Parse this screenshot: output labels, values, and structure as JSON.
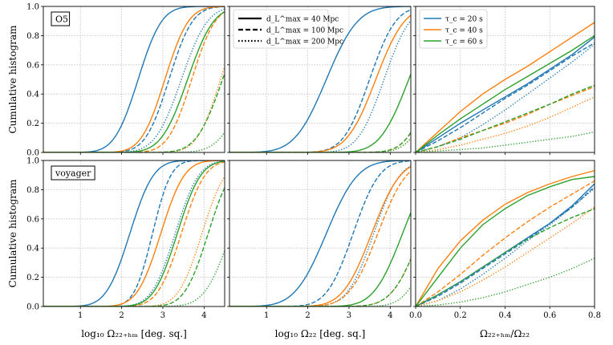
{
  "figure": {
    "row_labels": [
      "O5",
      "voyager"
    ],
    "y_axis_label": "Cumulative histogram",
    "x_axis_labels": [
      "log₁₀ Ω₂₂₊ₕₘ [deg. sq.]",
      "log₁₀ Ω₂₂ [deg. sq.]",
      "Ω₂₂₊ₕₘ/Ω₂₂"
    ],
    "legend_linestyle": [
      "d_L^max = 40 Mpc",
      "d_L^max = 100 Mpc",
      "d_L^max = 200 Mpc"
    ],
    "legend_color": [
      "τ_c = 20 s",
      "τ_c = 40 s",
      "τ_c = 60 s"
    ],
    "colors": {
      "tau20": "#1f77b4",
      "tau40": "#ff7f0e",
      "tau60": "#2ca02c"
    }
  },
  "chart_data": [
    {
      "type": "line",
      "panel": "O5 / log10 Omega22+HM",
      "xlim": [
        0.1,
        4.5
      ],
      "ylim": [
        0,
        1
      ],
      "xticks": [
        1,
        2,
        3,
        4
      ],
      "yticks": [
        0.0,
        0.2,
        0.4,
        0.6,
        0.8,
        1.0
      ],
      "grid": true,
      "series": [
        {
          "name": "tau_c = 20 s, d_L^max = 40 Mpc",
          "color": "#1f77b4",
          "style": "solid",
          "mu": 2.4,
          "sigma": 0.45
        },
        {
          "name": "tau_c = 20 s, d_L^max = 100 Mpc",
          "color": "#1f77b4",
          "style": "dashed",
          "mu": 3.15,
          "sigma": 0.45
        },
        {
          "name": "tau_c = 20 s, d_L^max = 200 Mpc",
          "color": "#1f77b4",
          "style": "dotted",
          "mu": 3.45,
          "sigma": 0.5
        },
        {
          "name": "tau_c = 40 s, d_L^max = 40 Mpc",
          "color": "#ff7f0e",
          "style": "solid",
          "mu": 3.05,
          "sigma": 0.45
        },
        {
          "name": "tau_c = 40 s, d_L^max = 100 Mpc",
          "color": "#ff7f0e",
          "style": "dashed",
          "mu": 3.7,
          "sigma": 0.45
        },
        {
          "name": "tau_c = 40 s, d_L^max = 200 Mpc",
          "color": "#ff7f0e",
          "style": "dotted",
          "mu": 4.4,
          "sigma": 0.45
        },
        {
          "name": "tau_c = 60 s, d_L^max = 40 Mpc",
          "color": "#2ca02c",
          "style": "solid",
          "mu": 3.6,
          "sigma": 0.5
        },
        {
          "name": "tau_c = 60 s, d_L^max = 100 Mpc",
          "color": "#2ca02c",
          "style": "dashed",
          "mu": 4.45,
          "sigma": 0.5
        },
        {
          "name": "tau_c = 60 s, d_L^max = 200 Mpc",
          "color": "#2ca02c",
          "style": "dotted",
          "mu": 5.1,
          "sigma": 0.55
        }
      ]
    },
    {
      "type": "line",
      "panel": "O5 / log10 Omega22",
      "xlim": [
        0.1,
        4.5
      ],
      "ylim": [
        0,
        1
      ],
      "xticks": [
        1,
        2,
        3,
        4
      ],
      "yticks": [
        0.0,
        0.2,
        0.4,
        0.6,
        0.8,
        1.0
      ],
      "grid": true,
      "series": [
        {
          "name": "tau_c = 20 s, d_L^max = 40 Mpc",
          "color": "#1f77b4",
          "style": "solid",
          "mu": 2.45,
          "sigma": 0.6
        },
        {
          "name": "tau_c = 20 s, d_L^max = 100 Mpc",
          "color": "#1f77b4",
          "style": "dashed",
          "mu": 3.5,
          "sigma": 0.5
        },
        {
          "name": "tau_c = 20 s, d_L^max = 200 Mpc",
          "color": "#1f77b4",
          "style": "dotted",
          "mu": 3.85,
          "sigma": 0.5
        },
        {
          "name": "tau_c = 40 s, d_L^max = 40 Mpc",
          "color": "#ff7f0e",
          "style": "solid",
          "mu": 3.65,
          "sigma": 0.55
        },
        {
          "name": "tau_c = 40 s, d_L^max = 100 Mpc",
          "color": "#ff7f0e",
          "style": "dashed",
          "mu": 5.05,
          "sigma": 0.5
        },
        {
          "name": "tau_c = 40 s, d_L^max = 200 Mpc",
          "color": "#ff7f0e",
          "style": "dotted",
          "mu": 5.15,
          "sigma": 0.5
        },
        {
          "name": "tau_c = 60 s, d_L^max = 40 Mpc",
          "color": "#2ca02c",
          "style": "solid",
          "mu": 4.45,
          "sigma": 0.55
        },
        {
          "name": "tau_c = 60 s, d_L^max = 100 Mpc",
          "color": "#2ca02c",
          "style": "dashed",
          "mu": 5.05,
          "sigma": 0.5
        },
        {
          "name": "tau_c = 60 s, d_L^max = 200 Mpc",
          "color": "#2ca02c",
          "style": "dotted",
          "mu": 5.15,
          "sigma": 0.5
        }
      ]
    },
    {
      "type": "line",
      "panel": "O5 / ratio",
      "xlim": [
        0,
        0.8
      ],
      "ylim": [
        0,
        1
      ],
      "xticks": [
        0.0,
        0.2,
        0.4,
        0.6,
        0.8
      ],
      "yticks": [
        0.0,
        0.2,
        0.4,
        0.6,
        0.8,
        1.0
      ],
      "grid": true,
      "series": [
        {
          "name": "tau_c = 20 s, d_L^max = 40 Mpc",
          "color": "#1f77b4",
          "style": "solid",
          "x": [
            0,
            0.1,
            0.2,
            0.3,
            0.4,
            0.5,
            0.6,
            0.7,
            0.8
          ],
          "y": [
            0,
            0.1,
            0.2,
            0.29,
            0.38,
            0.47,
            0.57,
            0.67,
            0.79
          ]
        },
        {
          "name": "tau_c = 20 s, d_L^max = 100 Mpc",
          "color": "#1f77b4",
          "style": "dashed",
          "x": [
            0,
            0.1,
            0.2,
            0.3,
            0.4,
            0.5,
            0.6,
            0.7,
            0.8
          ],
          "y": [
            0,
            0.08,
            0.17,
            0.27,
            0.37,
            0.46,
            0.56,
            0.66,
            0.75
          ]
        },
        {
          "name": "tau_c = 20 s, d_L^max = 200 Mpc",
          "color": "#1f77b4",
          "style": "dotted",
          "x": [
            0,
            0.1,
            0.2,
            0.3,
            0.4,
            0.5,
            0.6,
            0.7,
            0.8
          ],
          "y": [
            0,
            0.04,
            0.1,
            0.19,
            0.29,
            0.4,
            0.51,
            0.62,
            0.74
          ]
        },
        {
          "name": "tau_c = 40 s, d_L^max = 40 Mpc",
          "color": "#ff7f0e",
          "style": "solid",
          "x": [
            0,
            0.1,
            0.2,
            0.3,
            0.4,
            0.5,
            0.6,
            0.7,
            0.8
          ],
          "y": [
            0,
            0.14,
            0.28,
            0.4,
            0.5,
            0.59,
            0.69,
            0.79,
            0.89
          ]
        },
        {
          "name": "tau_c = 40 s, d_L^max = 100 Mpc",
          "color": "#ff7f0e",
          "style": "dashed",
          "x": [
            0,
            0.1,
            0.2,
            0.3,
            0.4,
            0.5,
            0.6,
            0.7,
            0.8
          ],
          "y": [
            0,
            0.04,
            0.1,
            0.15,
            0.2,
            0.26,
            0.33,
            0.39,
            0.45
          ]
        },
        {
          "name": "tau_c = 40 s, d_L^max = 200 Mpc",
          "color": "#ff7f0e",
          "style": "dotted",
          "x": [
            0,
            0.1,
            0.2,
            0.3,
            0.4,
            0.5,
            0.6,
            0.7,
            0.8
          ],
          "y": [
            0,
            0.02,
            0.05,
            0.09,
            0.13,
            0.18,
            0.24,
            0.31,
            0.38
          ]
        },
        {
          "name": "tau_c = 60 s, d_L^max = 40 Mpc",
          "color": "#2ca02c",
          "style": "solid",
          "x": [
            0,
            0.1,
            0.2,
            0.3,
            0.4,
            0.5,
            0.6,
            0.7,
            0.8
          ],
          "y": [
            0,
            0.12,
            0.23,
            0.33,
            0.43,
            0.52,
            0.61,
            0.7,
            0.8
          ]
        },
        {
          "name": "tau_c = 60 s, d_L^max = 100 Mpc",
          "color": "#2ca02c",
          "style": "dashed",
          "x": [
            0,
            0.1,
            0.2,
            0.3,
            0.4,
            0.5,
            0.6,
            0.7,
            0.8
          ],
          "y": [
            0,
            0.04,
            0.09,
            0.15,
            0.21,
            0.27,
            0.33,
            0.4,
            0.46
          ]
        },
        {
          "name": "tau_c = 60 s, d_L^max = 200 Mpc",
          "color": "#2ca02c",
          "style": "dotted",
          "x": [
            0,
            0.1,
            0.2,
            0.3,
            0.4,
            0.5,
            0.6,
            0.7,
            0.8
          ],
          "y": [
            0,
            0.01,
            0.02,
            0.03,
            0.05,
            0.07,
            0.09,
            0.11,
            0.14
          ]
        }
      ]
    },
    {
      "type": "line",
      "panel": "voyager / log10 Omega22+HM",
      "xlim": [
        0.1,
        4.5
      ],
      "ylim": [
        0,
        1
      ],
      "xticks": [
        1,
        2,
        3,
        4
      ],
      "yticks": [
        0.0,
        0.2,
        0.4,
        0.6,
        0.8,
        1.0
      ],
      "grid": true,
      "series": [
        {
          "name": "tau_c = 20 s, d_L^max = 40 Mpc",
          "color": "#1f77b4",
          "style": "solid",
          "mu": 2.2,
          "sigma": 0.45
        },
        {
          "name": "tau_c = 20 s, d_L^max = 100 Mpc",
          "color": "#1f77b4",
          "style": "dashed",
          "mu": 2.75,
          "sigma": 0.35
        },
        {
          "name": "tau_c = 20 s, d_L^max = 200 Mpc",
          "color": "#1f77b4",
          "style": "dotted",
          "mu": 3.3,
          "sigma": 0.45
        },
        {
          "name": "tau_c = 40 s, d_L^max = 40 Mpc",
          "color": "#ff7f0e",
          "style": "solid",
          "mu": 2.95,
          "sigma": 0.45
        },
        {
          "name": "tau_c = 40 s, d_L^max = 100 Mpc",
          "color": "#ff7f0e",
          "style": "dashed",
          "mu": 3.45,
          "sigma": 0.45
        },
        {
          "name": "tau_c = 40 s, d_L^max = 200 Mpc",
          "color": "#ff7f0e",
          "style": "dotted",
          "mu": 3.95,
          "sigma": 0.45
        },
        {
          "name": "tau_c = 60 s, d_L^max = 40 Mpc",
          "color": "#2ca02c",
          "style": "solid",
          "mu": 3.35,
          "sigma": 0.45
        },
        {
          "name": "tau_c = 60 s, d_L^max = 100 Mpc",
          "color": "#2ca02c",
          "style": "dashed",
          "mu": 4.1,
          "sigma": 0.45
        },
        {
          "name": "tau_c = 60 s, d_L^max = 200 Mpc",
          "color": "#2ca02c",
          "style": "dotted",
          "mu": 4.65,
          "sigma": 0.5
        }
      ]
    },
    {
      "type": "line",
      "panel": "voyager / log10 Omega22",
      "xlim": [
        0.1,
        4.5
      ],
      "ylim": [
        0,
        1
      ],
      "xticks": [
        1,
        2,
        3,
        4
      ],
      "yticks": [
        0.0,
        0.2,
        0.4,
        0.6,
        0.8,
        1.0
      ],
      "grid": true,
      "series": [
        {
          "name": "tau_c = 20 s, d_L^max = 40 Mpc",
          "color": "#1f77b4",
          "style": "solid",
          "mu": 2.45,
          "sigma": 0.6
        },
        {
          "name": "tau_c = 20 s, d_L^max = 100 Mpc",
          "color": "#1f77b4",
          "style": "dashed",
          "mu": 3.1,
          "sigma": 0.5
        },
        {
          "name": "tau_c = 20 s, d_L^max = 200 Mpc",
          "color": "#1f77b4",
          "style": "dotted",
          "mu": 3.6,
          "sigma": 0.5
        },
        {
          "name": "tau_c = 40 s, d_L^max = 40 Mpc",
          "color": "#ff7f0e",
          "style": "solid",
          "mu": 3.55,
          "sigma": 0.55
        },
        {
          "name": "tau_c = 40 s, d_L^max = 100 Mpc",
          "color": "#ff7f0e",
          "style": "dashed",
          "mu": 3.7,
          "sigma": 0.55
        },
        {
          "name": "tau_c = 40 s, d_L^max = 200 Mpc",
          "color": "#ff7f0e",
          "style": "dotted",
          "mu": 4.75,
          "sigma": 0.55
        },
        {
          "name": "tau_c = 60 s, d_L^max = 40 Mpc",
          "color": "#2ca02c",
          "style": "solid",
          "mu": 4.3,
          "sigma": 0.55
        },
        {
          "name": "tau_c = 60 s, d_L^max = 100 Mpc",
          "color": "#2ca02c",
          "style": "dashed",
          "mu": 4.75,
          "sigma": 0.55
        },
        {
          "name": "tau_c = 60 s, d_L^max = 200 Mpc",
          "color": "#2ca02c",
          "style": "dotted",
          "mu": 5.05,
          "sigma": 0.5
        }
      ]
    },
    {
      "type": "line",
      "panel": "voyager / ratio",
      "xlim": [
        0,
        0.8
      ],
      "ylim": [
        0,
        1
      ],
      "xticks": [
        0.0,
        0.2,
        0.4,
        0.6,
        0.8
      ],
      "yticks": [
        0.0,
        0.2,
        0.4,
        0.6,
        0.8,
        1.0
      ],
      "grid": true,
      "series": [
        {
          "name": "tau_c = 20 s, d_L^max = 40 Mpc",
          "color": "#1f77b4",
          "style": "solid",
          "x": [
            0,
            0.1,
            0.2,
            0.3,
            0.4,
            0.5,
            0.6,
            0.7,
            0.8
          ],
          "y": [
            0,
            0.08,
            0.17,
            0.27,
            0.37,
            0.47,
            0.57,
            0.69,
            0.84
          ]
        },
        {
          "name": "tau_c = 20 s, d_L^max = 100 Mpc",
          "color": "#1f77b4",
          "style": "dashed",
          "x": [
            0,
            0.1,
            0.2,
            0.3,
            0.4,
            0.5,
            0.6,
            0.7,
            0.8
          ],
          "y": [
            0,
            0.07,
            0.16,
            0.26,
            0.36,
            0.46,
            0.57,
            0.68,
            0.82
          ]
        },
        {
          "name": "tau_c = 20 s, d_L^max = 200 Mpc",
          "color": "#1f77b4",
          "style": "dotted",
          "x": [
            0,
            0.1,
            0.2,
            0.3,
            0.4,
            0.5,
            0.6,
            0.7,
            0.8
          ],
          "y": [
            0,
            0.04,
            0.12,
            0.22,
            0.33,
            0.45,
            0.56,
            0.68,
            0.81
          ]
        },
        {
          "name": "tau_c = 40 s, d_L^max = 40 Mpc",
          "color": "#ff7f0e",
          "style": "solid",
          "x": [
            0,
            0.1,
            0.2,
            0.3,
            0.4,
            0.5,
            0.6,
            0.7,
            0.8
          ],
          "y": [
            0,
            0.26,
            0.45,
            0.59,
            0.7,
            0.78,
            0.84,
            0.89,
            0.93
          ]
        },
        {
          "name": "tau_c = 40 s, d_L^max = 100 Mpc",
          "color": "#ff7f0e",
          "style": "dashed",
          "x": [
            0,
            0.1,
            0.2,
            0.3,
            0.4,
            0.5,
            0.6,
            0.7,
            0.8
          ],
          "y": [
            0,
            0.1,
            0.22,
            0.35,
            0.47,
            0.58,
            0.68,
            0.77,
            0.86
          ]
        },
        {
          "name": "tau_c = 40 s, d_L^max = 200 Mpc",
          "color": "#ff7f0e",
          "style": "dotted",
          "x": [
            0,
            0.1,
            0.2,
            0.3,
            0.4,
            0.5,
            0.6,
            0.7,
            0.8
          ],
          "y": [
            0,
            0.04,
            0.1,
            0.18,
            0.27,
            0.37,
            0.47,
            0.57,
            0.68
          ]
        },
        {
          "name": "tau_c = 60 s, d_L^max = 40 Mpc",
          "color": "#2ca02c",
          "style": "solid",
          "x": [
            0,
            0.1,
            0.2,
            0.3,
            0.4,
            0.5,
            0.6,
            0.7,
            0.8
          ],
          "y": [
            0,
            0.2,
            0.4,
            0.56,
            0.67,
            0.76,
            0.82,
            0.87,
            0.89
          ]
        },
        {
          "name": "tau_c = 60 s, d_L^max = 100 Mpc",
          "color": "#2ca02c",
          "style": "dashed",
          "x": [
            0,
            0.1,
            0.2,
            0.3,
            0.4,
            0.5,
            0.6,
            0.7,
            0.8
          ],
          "y": [
            0,
            0.08,
            0.17,
            0.27,
            0.37,
            0.46,
            0.54,
            0.61,
            0.67
          ]
        },
        {
          "name": "tau_c = 60 s, d_L^max = 200 Mpc",
          "color": "#2ca02c",
          "style": "dotted",
          "x": [
            0,
            0.1,
            0.2,
            0.3,
            0.4,
            0.5,
            0.6,
            0.7,
            0.8
          ],
          "y": [
            0,
            0.01,
            0.03,
            0.06,
            0.1,
            0.15,
            0.2,
            0.26,
            0.33
          ]
        }
      ]
    }
  ]
}
